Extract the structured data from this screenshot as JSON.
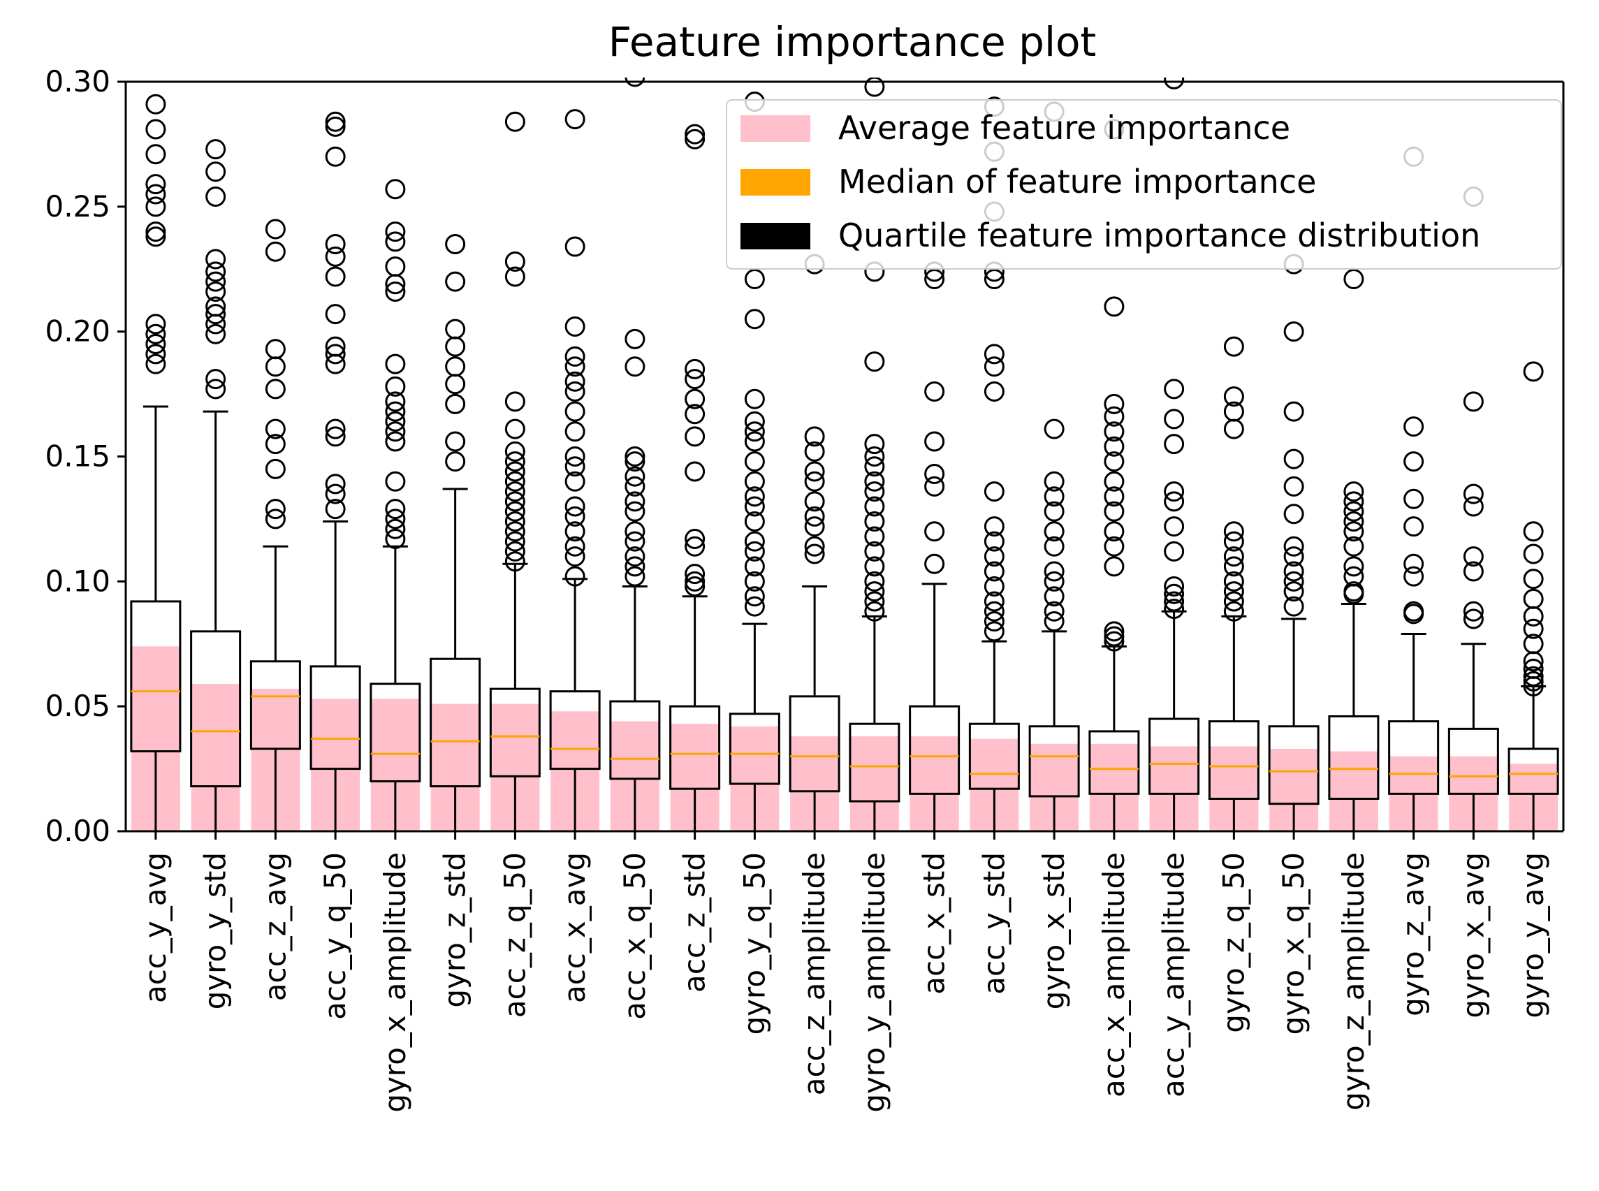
{
  "chart_data": {
    "type": "box+bar",
    "title": "Feature importance plot",
    "xlabel": "",
    "ylabel": "",
    "ylim": [
      0,
      0.3
    ],
    "yticks": [
      "0.00",
      "0.05",
      "0.10",
      "0.15",
      "0.20",
      "0.25",
      "0.30"
    ],
    "colors": {
      "mean_bar": "#ffc0cb",
      "median": "#ffa500",
      "box": "#000000"
    },
    "legend": {
      "position": "top-right",
      "entries": [
        {
          "label": "Average feature importance",
          "color": "#ffc0cb"
        },
        {
          "label": "Median of feature importance",
          "color": "#ffa500"
        },
        {
          "label": "Quartile feature importance distribution",
          "color": "#000000"
        }
      ]
    },
    "features": [
      {
        "name": "acc_y_avg",
        "mean": 0.074,
        "median": 0.056,
        "q1": 0.032,
        "q3": 0.092,
        "whisker_low": 0.0,
        "whisker_high": 0.17,
        "outliers": [
          0.291,
          0.281,
          0.271,
          0.259,
          0.255,
          0.25,
          0.24,
          0.238,
          0.203,
          0.199,
          0.195,
          0.191,
          0.187
        ]
      },
      {
        "name": "gyro_y_std",
        "mean": 0.059,
        "median": 0.04,
        "q1": 0.018,
        "q3": 0.08,
        "whisker_low": 0.0,
        "whisker_high": 0.168,
        "outliers": [
          0.273,
          0.264,
          0.254,
          0.229,
          0.224,
          0.22,
          0.216,
          0.21,
          0.207,
          0.203,
          0.199,
          0.181,
          0.177
        ]
      },
      {
        "name": "acc_z_avg",
        "mean": 0.057,
        "median": 0.054,
        "q1": 0.033,
        "q3": 0.068,
        "whisker_low": 0.0,
        "whisker_high": 0.114,
        "outliers": [
          0.241,
          0.232,
          0.193,
          0.186,
          0.177,
          0.161,
          0.155,
          0.145,
          0.129,
          0.125
        ]
      },
      {
        "name": "acc_y_q_50",
        "mean": 0.053,
        "median": 0.037,
        "q1": 0.025,
        "q3": 0.066,
        "whisker_low": 0.0,
        "whisker_high": 0.124,
        "outliers": [
          0.284,
          0.282,
          0.27,
          0.235,
          0.23,
          0.222,
          0.207,
          0.194,
          0.191,
          0.187,
          0.161,
          0.158,
          0.139,
          0.135,
          0.129
        ]
      },
      {
        "name": "gyro_x_amplitude",
        "mean": 0.053,
        "median": 0.031,
        "q1": 0.02,
        "q3": 0.059,
        "whisker_low": 0.0,
        "whisker_high": 0.114,
        "outliers": [
          0.257,
          0.24,
          0.236,
          0.226,
          0.219,
          0.216,
          0.187,
          0.178,
          0.172,
          0.168,
          0.164,
          0.16,
          0.156,
          0.14,
          0.129,
          0.125,
          0.121,
          0.117
        ]
      },
      {
        "name": "gyro_z_std",
        "mean": 0.051,
        "median": 0.036,
        "q1": 0.018,
        "q3": 0.069,
        "whisker_low": 0.0,
        "whisker_high": 0.137,
        "outliers": [
          0.235,
          0.22,
          0.201,
          0.194,
          0.186,
          0.179,
          0.171,
          0.156,
          0.148
        ]
      },
      {
        "name": "acc_z_q_50",
        "mean": 0.051,
        "median": 0.038,
        "q1": 0.022,
        "q3": 0.057,
        "whisker_low": 0.0,
        "whisker_high": 0.107,
        "outliers": [
          0.284,
          0.228,
          0.222,
          0.172,
          0.161,
          0.152,
          0.148,
          0.144,
          0.14,
          0.136,
          0.132,
          0.128,
          0.124,
          0.12,
          0.116,
          0.112,
          0.108
        ]
      },
      {
        "name": "acc_x_avg",
        "mean": 0.048,
        "median": 0.033,
        "q1": 0.025,
        "q3": 0.056,
        "whisker_low": 0.0,
        "whisker_high": 0.101,
        "outliers": [
          0.285,
          0.234,
          0.202,
          0.19,
          0.186,
          0.18,
          0.176,
          0.168,
          0.16,
          0.15,
          0.146,
          0.14,
          0.13,
          0.126,
          0.12,
          0.114,
          0.11,
          0.102
        ]
      },
      {
        "name": "acc_x_q_50",
        "mean": 0.044,
        "median": 0.029,
        "q1": 0.021,
        "q3": 0.052,
        "whisker_low": 0.0,
        "whisker_high": 0.098,
        "outliers": [
          0.302,
          0.197,
          0.186,
          0.15,
          0.148,
          0.142,
          0.138,
          0.132,
          0.128,
          0.12,
          0.116,
          0.11,
          0.106,
          0.102
        ]
      },
      {
        "name": "acc_z_std",
        "mean": 0.043,
        "median": 0.031,
        "q1": 0.017,
        "q3": 0.05,
        "whisker_low": 0.0,
        "whisker_high": 0.094,
        "outliers": [
          0.279,
          0.277,
          0.185,
          0.181,
          0.173,
          0.167,
          0.158,
          0.144,
          0.117,
          0.114,
          0.103,
          0.1,
          0.098
        ]
      },
      {
        "name": "gyro_y_q_50",
        "mean": 0.042,
        "median": 0.031,
        "q1": 0.019,
        "q3": 0.047,
        "whisker_low": 0.0,
        "whisker_high": 0.083,
        "outliers": [
          0.292,
          0.221,
          0.205,
          0.173,
          0.164,
          0.16,
          0.156,
          0.148,
          0.14,
          0.134,
          0.13,
          0.124,
          0.116,
          0.112,
          0.106,
          0.1,
          0.094,
          0.09
        ]
      },
      {
        "name": "acc_z_amplitude",
        "mean": 0.038,
        "median": 0.03,
        "q1": 0.016,
        "q3": 0.054,
        "whisker_low": 0.0,
        "whisker_high": 0.098,
        "outliers": [
          0.227,
          0.158,
          0.152,
          0.144,
          0.14,
          0.132,
          0.126,
          0.122,
          0.114,
          0.111
        ]
      },
      {
        "name": "gyro_y_amplitude",
        "mean": 0.038,
        "median": 0.026,
        "q1": 0.012,
        "q3": 0.043,
        "whisker_low": 0.0,
        "whisker_high": 0.086,
        "outliers": [
          0.298,
          0.224,
          0.188,
          0.155,
          0.15,
          0.146,
          0.14,
          0.136,
          0.13,
          0.124,
          0.118,
          0.112,
          0.106,
          0.1,
          0.096,
          0.092,
          0.088
        ]
      },
      {
        "name": "acc_x_std",
        "mean": 0.038,
        "median": 0.03,
        "q1": 0.015,
        "q3": 0.05,
        "whisker_low": 0.0,
        "whisker_high": 0.099,
        "outliers": [
          0.224,
          0.221,
          0.176,
          0.156,
          0.143,
          0.138,
          0.12,
          0.107
        ]
      },
      {
        "name": "acc_y_std",
        "mean": 0.037,
        "median": 0.023,
        "q1": 0.017,
        "q3": 0.043,
        "whisker_low": 0.0,
        "whisker_high": 0.076,
        "outliers": [
          0.29,
          0.272,
          0.248,
          0.224,
          0.221,
          0.191,
          0.186,
          0.176,
          0.136,
          0.122,
          0.116,
          0.11,
          0.104,
          0.098,
          0.092,
          0.088,
          0.084,
          0.08
        ]
      },
      {
        "name": "gyro_x_std",
        "mean": 0.035,
        "median": 0.03,
        "q1": 0.014,
        "q3": 0.042,
        "whisker_low": 0.0,
        "whisker_high": 0.08,
        "outliers": [
          0.288,
          0.161,
          0.14,
          0.134,
          0.128,
          0.12,
          0.114,
          0.104,
          0.1,
          0.094,
          0.088,
          0.084
        ]
      },
      {
        "name": "acc_x_amplitude",
        "mean": 0.035,
        "median": 0.025,
        "q1": 0.015,
        "q3": 0.04,
        "whisker_low": 0.0,
        "whisker_high": 0.074,
        "outliers": [
          0.281,
          0.21,
          0.171,
          0.166,
          0.16,
          0.154,
          0.148,
          0.14,
          0.134,
          0.128,
          0.12,
          0.114,
          0.106,
          0.08,
          0.078,
          0.076
        ]
      },
      {
        "name": "acc_y_amplitude",
        "mean": 0.034,
        "median": 0.027,
        "q1": 0.015,
        "q3": 0.045,
        "whisker_low": 0.0,
        "whisker_high": 0.088,
        "outliers": [
          0.301,
          0.177,
          0.165,
          0.155,
          0.136,
          0.132,
          0.122,
          0.112,
          0.098,
          0.095,
          0.092,
          0.089
        ]
      },
      {
        "name": "gyro_z_q_50",
        "mean": 0.034,
        "median": 0.026,
        "q1": 0.013,
        "q3": 0.044,
        "whisker_low": 0.0,
        "whisker_high": 0.086,
        "outliers": [
          0.194,
          0.174,
          0.168,
          0.161,
          0.12,
          0.116,
          0.11,
          0.106,
          0.1,
          0.096,
          0.092,
          0.088
        ]
      },
      {
        "name": "gyro_x_q_50",
        "mean": 0.033,
        "median": 0.024,
        "q1": 0.011,
        "q3": 0.042,
        "whisker_low": 0.0,
        "whisker_high": 0.085,
        "outliers": [
          0.227,
          0.2,
          0.168,
          0.149,
          0.138,
          0.127,
          0.114,
          0.11,
          0.104,
          0.1,
          0.096,
          0.09
        ]
      },
      {
        "name": "gyro_z_amplitude",
        "mean": 0.032,
        "median": 0.025,
        "q1": 0.013,
        "q3": 0.046,
        "whisker_low": 0.0,
        "whisker_high": 0.091,
        "outliers": [
          0.221,
          0.136,
          0.132,
          0.128,
          0.124,
          0.12,
          0.114,
          0.106,
          0.102,
          0.096,
          0.095
        ]
      },
      {
        "name": "gyro_z_avg",
        "mean": 0.03,
        "median": 0.023,
        "q1": 0.015,
        "q3": 0.044,
        "whisker_low": 0.0,
        "whisker_high": 0.079,
        "outliers": [
          0.27,
          0.162,
          0.148,
          0.133,
          0.122,
          0.107,
          0.102,
          0.088,
          0.087
        ]
      },
      {
        "name": "gyro_x_avg",
        "mean": 0.03,
        "median": 0.022,
        "q1": 0.015,
        "q3": 0.041,
        "whisker_low": 0.0,
        "whisker_high": 0.075,
        "outliers": [
          0.254,
          0.172,
          0.135,
          0.13,
          0.11,
          0.104,
          0.088,
          0.085
        ]
      },
      {
        "name": "gyro_y_avg",
        "mean": 0.027,
        "median": 0.023,
        "q1": 0.015,
        "q3": 0.033,
        "whisker_low": 0.0,
        "whisker_high": 0.058,
        "outliers": [
          0.184,
          0.12,
          0.111,
          0.101,
          0.093,
          0.086,
          0.081,
          0.075,
          0.068,
          0.065,
          0.062,
          0.06,
          0.058
        ]
      }
    ]
  }
}
